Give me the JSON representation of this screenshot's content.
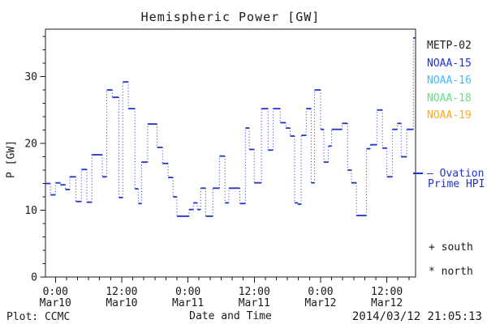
{
  "title": "Hemispheric Power [GW]",
  "axes": {
    "ylabel": "P [GW]",
    "xlabel": "Date and Time",
    "y_ticks": [
      0,
      10,
      20,
      30
    ],
    "y_minor_step": 2,
    "y_minor_max": 36,
    "y_axis_max": 37.1,
    "x_minor_step_hours": 2,
    "x_major_ticks": [
      {
        "t": 0,
        "time": "0:00",
        "date": "Mar10"
      },
      {
        "t": 12,
        "time": "12:00",
        "date": "Mar10"
      },
      {
        "t": 24,
        "time": "0:00",
        "date": "Mar11"
      },
      {
        "t": 36,
        "time": "12:00",
        "date": "Mar11"
      },
      {
        "t": 48,
        "time": "0:00",
        "date": "Mar12"
      },
      {
        "t": 60,
        "time": "12:00",
        "date": "Mar12"
      }
    ]
  },
  "legend": {
    "satellites": [
      {
        "label": "METP-02",
        "color": "#1a1a1a"
      },
      {
        "label": "NOAA-15",
        "color": "#2233cc"
      },
      {
        "label": "NOAA-16",
        "color": "#44bbff"
      },
      {
        "label": "NOAA-18",
        "color": "#66dd88"
      },
      {
        "label": "NOAA-19",
        "color": "#ffaa22"
      }
    ],
    "model_line1": "— Ovation",
    "model_line2": "Prime HPI",
    "model_color": "#2233cc",
    "south_label": "+ south",
    "north_label": "* north"
  },
  "footer": {
    "left": "Plot: CCMC",
    "right": "2014/03/12 21:05:13"
  },
  "chart_data": {
    "type": "line",
    "style": "steps",
    "title": "Hemispheric Power [GW]",
    "xlabel": "Date and Time",
    "ylabel": "P [GW]",
    "series_name": "Ovation Prime HPI",
    "series_color": "#2233cc",
    "x_unit": "hours since 2014-03-10 00:00 UT",
    "x_range": [
      -1.8,
      65.2
    ],
    "y_range": [
      0,
      37.1
    ],
    "grid": false,
    "legend_position": "right",
    "steps": [
      [
        -1.8,
        14.0
      ],
      [
        -0.9,
        12.3
      ],
      [
        0.0,
        14.1
      ],
      [
        0.9,
        13.8
      ],
      [
        1.8,
        13.1
      ],
      [
        2.6,
        15.0
      ],
      [
        3.7,
        11.3
      ],
      [
        4.7,
        16.1
      ],
      [
        5.7,
        11.2
      ],
      [
        6.6,
        18.3
      ],
      [
        8.5,
        15.0
      ],
      [
        9.3,
        28.0
      ],
      [
        10.3,
        26.9
      ],
      [
        11.5,
        11.9
      ],
      [
        12.2,
        29.2
      ],
      [
        13.2,
        25.2
      ],
      [
        14.4,
        13.2
      ],
      [
        15.0,
        11.0
      ],
      [
        15.6,
        17.2
      ],
      [
        16.7,
        22.9
      ],
      [
        18.4,
        19.4
      ],
      [
        19.4,
        17.0
      ],
      [
        20.4,
        14.9
      ],
      [
        21.3,
        12.0
      ],
      [
        22.0,
        9.1
      ],
      [
        24.2,
        10.1
      ],
      [
        25.0,
        11.1
      ],
      [
        25.7,
        10.1
      ],
      [
        26.3,
        13.3
      ],
      [
        27.2,
        9.1
      ],
      [
        28.5,
        13.3
      ],
      [
        29.7,
        18.1
      ],
      [
        30.7,
        11.1
      ],
      [
        31.4,
        13.3
      ],
      [
        33.4,
        11.0
      ],
      [
        34.4,
        22.3
      ],
      [
        35.1,
        19.1
      ],
      [
        36.0,
        14.1
      ],
      [
        37.3,
        25.2
      ],
      [
        38.5,
        19.0
      ],
      [
        39.4,
        25.2
      ],
      [
        40.7,
        23.1
      ],
      [
        41.7,
        22.3
      ],
      [
        42.5,
        21.1
      ],
      [
        43.3,
        11.1
      ],
      [
        43.9,
        10.9
      ],
      [
        44.5,
        21.2
      ],
      [
        45.4,
        25.2
      ],
      [
        46.3,
        14.1
      ],
      [
        46.9,
        28.0
      ],
      [
        48.0,
        22.1
      ],
      [
        48.6,
        17.2
      ],
      [
        49.4,
        19.6
      ],
      [
        50.0,
        22.1
      ],
      [
        51.9,
        23.0
      ],
      [
        52.9,
        16.0
      ],
      [
        53.6,
        14.1
      ],
      [
        54.5,
        9.2
      ],
      [
        56.3,
        19.2
      ],
      [
        57.0,
        19.8
      ],
      [
        58.2,
        25.0
      ],
      [
        59.2,
        19.3
      ],
      [
        60.0,
        15.0
      ],
      [
        61.0,
        22.1
      ],
      [
        61.9,
        23.0
      ],
      [
        62.6,
        18.0
      ],
      [
        63.6,
        22.1
      ],
      [
        64.8,
        35.8
      ]
    ]
  }
}
